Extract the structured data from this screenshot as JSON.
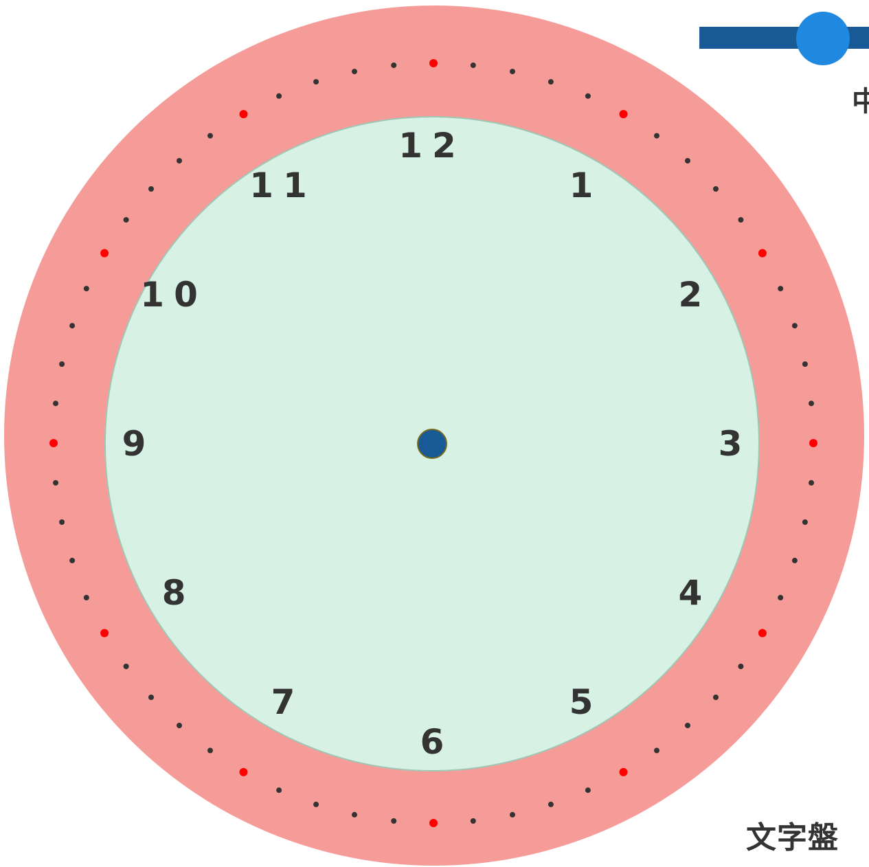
{
  "clock": {
    "outer_ring_color": "#f59c98",
    "face_color": "#d8f1e5",
    "face_border_color": "#9fc7b6",
    "center_dot_color": "#175a96",
    "center_dot_border": "#7a6a1e",
    "minute_dot_color": "#333333",
    "five_minute_dot_color": "#ff0000",
    "numerals": [
      "12",
      "1",
      "2",
      "3",
      "4",
      "5",
      "6",
      "7",
      "8",
      "9",
      "10",
      "11"
    ]
  },
  "slider": {
    "track_color": "#175a96",
    "thumb_color": "#1f88e0",
    "label": "中"
  },
  "dial_label": "文字盤"
}
